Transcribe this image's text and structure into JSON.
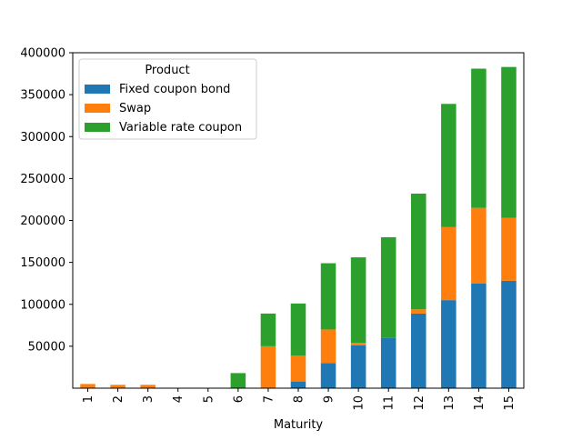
{
  "chart_data": {
    "type": "bar",
    "stacked": true,
    "xlabel": "Maturity",
    "ylabel": "",
    "ylim": [
      0,
      400000
    ],
    "yticks": [
      50000,
      100000,
      150000,
      200000,
      250000,
      300000,
      350000,
      400000
    ],
    "categories": [
      "1",
      "2",
      "3",
      "4",
      "5",
      "6",
      "7",
      "8",
      "9",
      "10",
      "11",
      "12",
      "13",
      "14",
      "15"
    ],
    "legend": {
      "title": "Product",
      "placement": "top-left"
    },
    "series": [
      {
        "name": "Fixed coupon bond",
        "color": "#1f77b4",
        "values": [
          0,
          0,
          0,
          0,
          0,
          0,
          0,
          8000,
          30000,
          51000,
          60000,
          89000,
          105000,
          125000,
          128000
        ]
      },
      {
        "name": "Swap",
        "color": "#ff7f0e",
        "values": [
          5000,
          4000,
          4000,
          0,
          0,
          0,
          50000,
          31000,
          40000,
          3000,
          0,
          5000,
          87000,
          90000,
          75000
        ]
      },
      {
        "name": "Variable rate coupon",
        "color": "#2ca02c",
        "values": [
          0,
          0,
          0,
          0,
          0,
          18000,
          39000,
          62000,
          79000,
          102000,
          120000,
          138000,
          147000,
          166000,
          180000
        ]
      }
    ]
  }
}
